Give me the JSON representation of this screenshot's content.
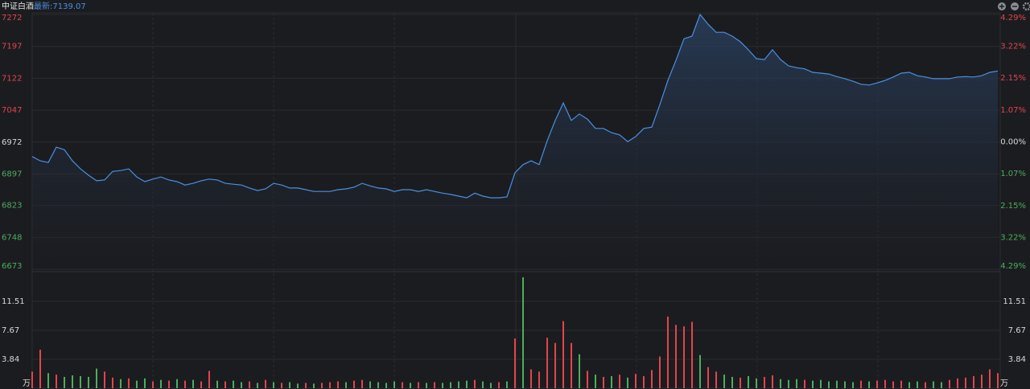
{
  "chart_data": {
    "type": "intraday",
    "title": "中证白酒",
    "subtitle": "最新:7139.07",
    "values": [
      6938,
      6928,
      6924,
      6960,
      6954,
      6928,
      6909,
      6894,
      6881,
      6883,
      6903,
      6905,
      6909,
      6890,
      6879,
      6885,
      6890,
      6883,
      6879,
      6871,
      6875,
      6881,
      6885,
      6883,
      6875,
      6873,
      6871,
      6864,
      6858,
      6862,
      6875,
      6871,
      6864,
      6864,
      6860,
      6856,
      6856,
      6856,
      6860,
      6862,
      6866,
      6875,
      6869,
      6864,
      6862,
      6856,
      6860,
      6860,
      6856,
      6860,
      6856,
      6852,
      6849,
      6845,
      6841,
      6852,
      6845,
      6841,
      6841,
      6843,
      6900,
      6919,
      6928,
      6919,
      6975,
      7023,
      7064,
      7023,
      7038,
      7026,
      7004,
      7004,
      6994,
      6989,
      6973,
      6985,
      7004,
      7007,
      7060,
      7117,
      7164,
      7215,
      7221,
      7272,
      7249,
      7230,
      7230,
      7221,
      7208,
      7189,
      7168,
      7166,
      7189,
      7166,
      7151,
      7147,
      7144,
      7136,
      7134,
      7132,
      7126,
      7121,
      7115,
      7108,
      7106,
      7111,
      7117,
      7125,
      7134,
      7136,
      7128,
      7125,
      7121,
      7121,
      7121,
      7125,
      7126,
      7125,
      7128,
      7136,
      7139.07
    ],
    "color": "#4a8fe0",
    "ylim": [
      6673,
      7272
    ],
    "yticks": [
      7272,
      7197,
      7122,
      7047,
      6972,
      6897,
      6823,
      6748,
      6673
    ],
    "y2lim": [
      -4.29,
      4.29
    ],
    "y2ticks": [
      {
        "value": 4.29,
        "label": "4.29%"
      },
      {
        "value": 3.22,
        "label": "3.22%"
      },
      {
        "value": 2.15,
        "label": "2.15%"
      },
      {
        "value": 1.07,
        "label": "1.07%"
      },
      {
        "value": 0,
        "label": "0.00%"
      },
      {
        "value": -1.07,
        "label": "1.07%"
      },
      {
        "value": -2.15,
        "label": "2.15%"
      },
      {
        "value": -3.22,
        "label": "3.22%"
      },
      {
        "value": -4.29,
        "label": "4.29%"
      }
    ],
    "up_color": "#e2454b",
    "down_color": "#4cae5c",
    "flat_color": "#d8d8d8",
    "grid": true,
    "volume": {
      "unit": "万",
      "ylim": [
        0,
        15.35
      ],
      "yticks": [
        3.84,
        7.67,
        11.51
      ],
      "values": [
        2.2,
        5.1,
        2.0,
        1.8,
        1.5,
        1.7,
        1.6,
        1.5,
        2.6,
        2.2,
        1.4,
        1.2,
        1.3,
        1.0,
        1.3,
        0.9,
        1.1,
        1.0,
        1.2,
        1.0,
        1.1,
        0.9,
        2.3,
        1.0,
        0.9,
        1.0,
        0.8,
        0.9,
        0.7,
        1.1,
        0.8,
        0.7,
        0.8,
        0.6,
        0.7,
        0.6,
        0.7,
        0.8,
        0.9,
        0.8,
        1.0,
        1.1,
        0.9,
        0.8,
        0.7,
        0.9,
        0.8,
        0.7,
        0.8,
        0.7,
        0.8,
        0.7,
        0.8,
        0.9,
        1.0,
        1.1,
        0.9,
        0.7,
        0.8,
        0.9,
        6.6,
        14.7,
        2.5,
        2.2,
        6.7,
        6.0,
        8.9,
        6.0,
        4.5,
        2.3,
        1.8,
        1.5,
        1.6,
        1.8,
        1.4,
        1.9,
        1.6,
        2.4,
        4.2,
        9.5,
        8.4,
        8.2,
        8.8,
        4.4,
        2.8,
        2.2,
        1.8,
        1.5,
        1.4,
        1.6,
        1.3,
        1.5,
        1.7,
        1.2,
        1.1,
        1.2,
        1.1,
        1.0,
        1.1,
        0.9,
        1.0,
        0.9,
        0.8,
        1.0,
        0.9,
        1.0,
        1.1,
        0.9,
        1.0,
        0.8,
        0.9,
        0.8,
        0.9,
        0.8,
        1.1,
        1.3,
        1.4,
        1.6,
        1.8,
        2.5,
        2.0
      ],
      "colors": [
        "#e2454b",
        "#e2454b",
        "#4cae5c",
        "#e2454b",
        "#4cae5c",
        "#4cae5c",
        "#4cae5c",
        "#4cae5c",
        "#4cae5c",
        "#e2454b",
        "#e2454b",
        "#4cae5c",
        "#e2454b",
        "#4cae5c",
        "#4cae5c",
        "#e2454b",
        "#4cae5c",
        "#e2454b",
        "#4cae5c",
        "#e2454b",
        "#4cae5c",
        "#e2454b",
        "#e2454b",
        "#4cae5c",
        "#e2454b",
        "#4cae5c",
        "#4cae5c",
        "#e2454b",
        "#4cae5c",
        "#e2454b",
        "#4cae5c",
        "#e2454b",
        "#4cae5c",
        "#4cae5c",
        "#e2454b",
        "#4cae5c",
        "#e2454b",
        "#e2454b",
        "#e2454b",
        "#4cae5c",
        "#e2454b",
        "#e2454b",
        "#4cae5c",
        "#4cae5c",
        "#4cae5c",
        "#4cae5c",
        "#e2454b",
        "#4cae5c",
        "#e2454b",
        "#4cae5c",
        "#e2454b",
        "#4cae5c",
        "#4cae5c",
        "#4cae5c",
        "#4cae5c",
        "#e2454b",
        "#4cae5c",
        "#4cae5c",
        "#e2454b",
        "#4cae5c",
        "#e2454b",
        "#4cae5c",
        "#e2454b",
        "#e2454b",
        "#e2454b",
        "#e2454b",
        "#e2454b",
        "#e2454b",
        "#4cae5c",
        "#e2454b",
        "#4cae5c",
        "#e2454b",
        "#4cae5c",
        "#e2454b",
        "#4cae5c",
        "#e2454b",
        "#e2454b",
        "#e2454b",
        "#e2454b",
        "#e2454b",
        "#e2454b",
        "#e2454b",
        "#e2454b",
        "#4cae5c",
        "#e2454b",
        "#e2454b",
        "#4cae5c",
        "#4cae5c",
        "#e2454b",
        "#4cae5c",
        "#4cae5c",
        "#e2454b",
        "#e2454b",
        "#4cae5c",
        "#4cae5c",
        "#4cae5c",
        "#e2454b",
        "#4cae5c",
        "#4cae5c",
        "#4cae5c",
        "#4cae5c",
        "#4cae5c",
        "#4cae5c",
        "#e2454b",
        "#4cae5c",
        "#e2454b",
        "#e2454b",
        "#e2454b",
        "#e2454b",
        "#4cae5c",
        "#4cae5c",
        "#e2454b",
        "#4cae5c",
        "#4cae5c",
        "#e2454b",
        "#e2454b",
        "#e2454b",
        "#e2454b",
        "#e2454b",
        "#e2454b",
        "#e2454b"
      ]
    }
  }
}
